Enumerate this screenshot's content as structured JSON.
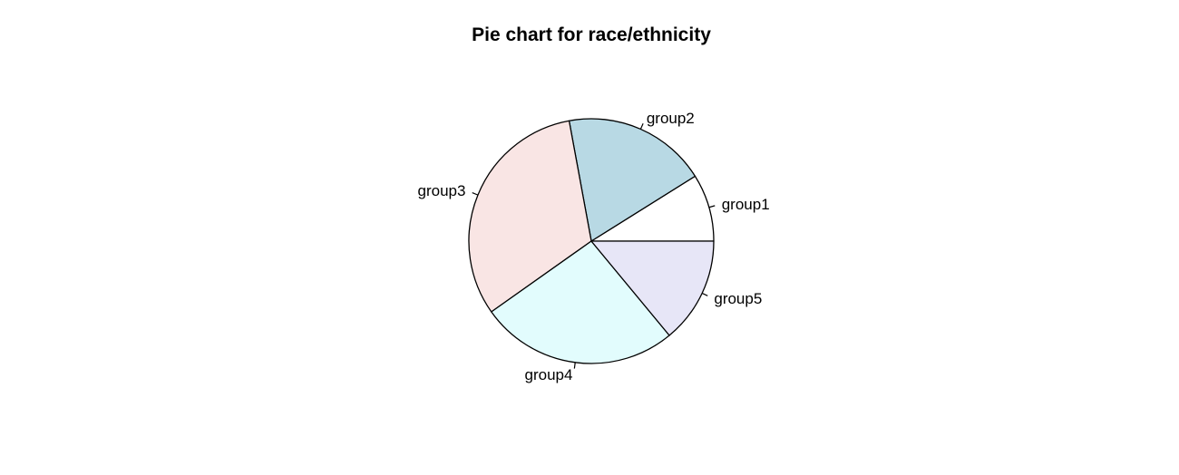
{
  "chart_data": {
    "type": "pie",
    "title": "Pie chart for race/ethnicity",
    "start_angle_deg": 0,
    "direction": "counterclockwise",
    "categories": [
      "group1",
      "group2",
      "group3",
      "group4",
      "group5"
    ],
    "values": [
      89,
      190,
      319,
      262,
      140
    ],
    "colors": [
      "#FFFFFF",
      "#B8D9E4",
      "#F9E5E4",
      "#E2FCFD",
      "#E7E6F7"
    ],
    "slices": [
      {
        "label": "group1",
        "value": 89,
        "color": "#FFFFFF"
      },
      {
        "label": "group2",
        "value": 190,
        "color": "#B8D9E4"
      },
      {
        "label": "group3",
        "value": 319,
        "color": "#F9E5E4"
      },
      {
        "label": "group4",
        "value": 262,
        "color": "#E2FCFD"
      },
      {
        "label": "group5",
        "value": 140,
        "color": "#E7E6F7"
      }
    ]
  }
}
